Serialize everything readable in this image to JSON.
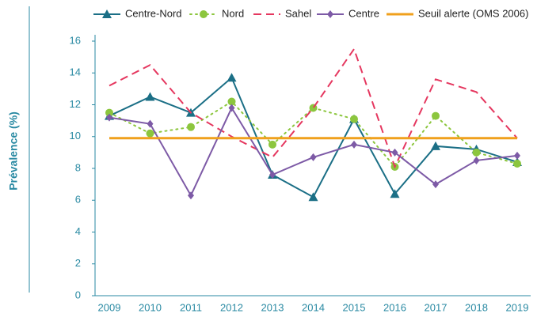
{
  "chart_data": {
    "type": "line",
    "y_label": "Prévalence (%)",
    "categories": [
      "2009",
      "2010",
      "2011",
      "2012",
      "2013",
      "2014",
      "2015",
      "2016",
      "2017",
      "2018",
      "2019"
    ],
    "series": [
      {
        "name": "Centre-Nord",
        "color": "#1b6f86",
        "marker": "triangle",
        "dash": "solid",
        "values": [
          11.3,
          12.5,
          11.5,
          13.7,
          7.6,
          6.2,
          11.1,
          6.4,
          9.4,
          9.2,
          8.4
        ]
      },
      {
        "name": "Nord",
        "color": "#8cc63e",
        "marker": "circle",
        "dash": "dotted",
        "values": [
          11.5,
          10.2,
          10.6,
          12.2,
          9.5,
          11.8,
          11.1,
          8.1,
          11.3,
          9.0,
          8.3
        ]
      },
      {
        "name": "Sahel",
        "color": "#e5375f",
        "marker": "none",
        "dash": "dashed",
        "values": [
          13.2,
          14.5,
          11.5,
          10.0,
          8.7,
          11.8,
          15.5,
          8.1,
          13.6,
          12.8,
          9.9
        ]
      },
      {
        "name": "Centre",
        "color": "#7d5aa6",
        "marker": "diamond",
        "dash": "solid",
        "values": [
          11.2,
          10.8,
          6.3,
          11.8,
          7.6,
          8.7,
          9.5,
          9.0,
          7.0,
          8.5,
          8.8
        ]
      },
      {
        "name": "Seuil alerte (OMS 2006)",
        "color": "#f0a01c",
        "marker": "none",
        "dash": "solid",
        "values": [
          9.9,
          9.9,
          9.9,
          9.9,
          9.9,
          9.9,
          9.9,
          9.9,
          9.9,
          9.9,
          9.9
        ]
      }
    ],
    "ylim": [
      0,
      16
    ],
    "yticks": [
      0,
      2,
      4,
      6,
      8,
      10,
      12,
      14,
      16
    ],
    "grid": false
  }
}
